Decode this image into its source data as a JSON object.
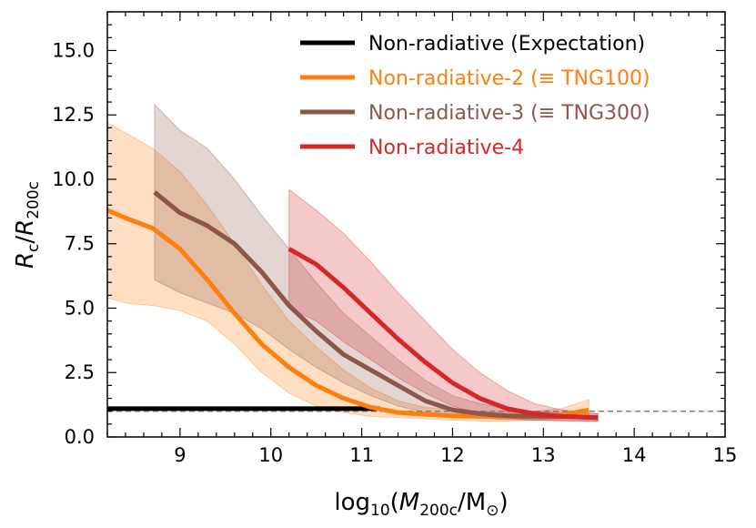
{
  "chart_data": {
    "type": "line",
    "title": "",
    "xlabel": {
      "pre": "log",
      "sub1": "10",
      "mid": "(",
      "ital": "M",
      "sub2": "200c",
      "post": "/M",
      "sub3": "⊙",
      "close": ")"
    },
    "ylabel": {
      "ital": "R",
      "sub1": "c",
      "slash": "/",
      "ital2": "R",
      "sub2": "200c"
    },
    "xlim": [
      8.2,
      15
    ],
    "ylim": [
      0,
      16.5
    ],
    "x_ticks": [
      9,
      10,
      11,
      12,
      13,
      14,
      15
    ],
    "x_tick_labels": [
      "9",
      "10",
      "11",
      "12",
      "13",
      "14",
      "15"
    ],
    "y_ticks": [
      0,
      2.5,
      5.0,
      7.5,
      10.0,
      12.5,
      15.0
    ],
    "y_tick_labels": [
      "0.0",
      "2.5",
      "5.0",
      "7.5",
      "10.0",
      "12.5",
      "15.0"
    ],
    "reference_line": {
      "y": 1.0,
      "style": "dashed",
      "color": "#808080"
    },
    "legend_position": "top-right",
    "series": [
      {
        "name": "Non-radiative (Expectation)",
        "color": "#000000",
        "x": [
          8.2,
          11.2
        ],
        "y": [
          1.1,
          1.1
        ]
      },
      {
        "name": "Non-radiative-2 (≡ TNG100)",
        "color": "#ff7f0e",
        "x": [
          8.2,
          8.4,
          8.7,
          9.0,
          9.3,
          9.6,
          9.9,
          10.2,
          10.5,
          10.8,
          11.1,
          11.4,
          11.7,
          12.0,
          12.3,
          12.6,
          12.9,
          13.2,
          13.5
        ],
        "y": [
          8.8,
          8.5,
          8.1,
          7.3,
          6.1,
          4.8,
          3.6,
          2.7,
          2.0,
          1.5,
          1.15,
          0.95,
          0.88,
          0.82,
          0.8,
          0.78,
          0.8,
          0.85,
          1.05
        ],
        "band_upper": [
          12.2,
          11.8,
          11.2,
          10.3,
          9.0,
          7.5,
          5.9,
          4.5,
          3.5,
          2.6,
          1.9,
          1.4,
          1.15,
          1.05,
          1.0,
          0.98,
          1.0,
          1.1,
          1.45
        ],
        "band_lower": [
          5.4,
          5.2,
          5.1,
          4.9,
          4.5,
          3.6,
          2.5,
          1.7,
          1.2,
          0.95,
          0.8,
          0.75,
          0.7,
          0.65,
          0.62,
          0.62,
          0.65,
          0.7,
          0.8
        ]
      },
      {
        "name": "Non-radiative-3 (≡ TNG300)",
        "color": "#8c564b",
        "x": [
          8.72,
          9.0,
          9.3,
          9.6,
          9.9,
          10.2,
          10.5,
          10.8,
          11.1,
          11.4,
          11.7,
          12.0,
          12.3,
          12.6,
          12.9,
          13.2,
          13.6
        ],
        "y": [
          9.5,
          8.7,
          8.2,
          7.5,
          6.4,
          5.1,
          4.1,
          3.2,
          2.6,
          2.0,
          1.4,
          1.05,
          0.9,
          0.82,
          0.8,
          0.8,
          0.75
        ],
        "band_upper": [
          12.9,
          11.9,
          11.2,
          10.0,
          8.6,
          7.3,
          6.0,
          4.8,
          3.9,
          3.0,
          2.2,
          1.6,
          1.3,
          1.1,
          1.0,
          0.95,
          0.9
        ],
        "band_lower": [
          6.1,
          5.6,
          5.2,
          4.8,
          4.2,
          3.4,
          2.7,
          2.1,
          1.6,
          1.2,
          0.95,
          0.8,
          0.72,
          0.68,
          0.65,
          0.65,
          0.62
        ]
      },
      {
        "name": "Non-radiative-4",
        "color": "#d62728",
        "x": [
          10.2,
          10.5,
          10.8,
          11.1,
          11.4,
          11.7,
          12.0,
          12.3,
          12.6,
          12.9,
          13.2,
          13.6
        ],
        "y": [
          7.3,
          6.7,
          5.8,
          4.8,
          3.8,
          2.9,
          2.1,
          1.5,
          1.1,
          0.9,
          0.8,
          0.75
        ],
        "band_upper": [
          9.6,
          8.8,
          7.9,
          6.8,
          5.6,
          4.5,
          3.4,
          2.5,
          1.8,
          1.3,
          1.05,
          0.9
        ],
        "band_lower": [
          5.0,
          4.5,
          3.7,
          3.0,
          2.3,
          1.7,
          1.2,
          0.9,
          0.72,
          0.66,
          0.62,
          0.6
        ]
      }
    ]
  }
}
